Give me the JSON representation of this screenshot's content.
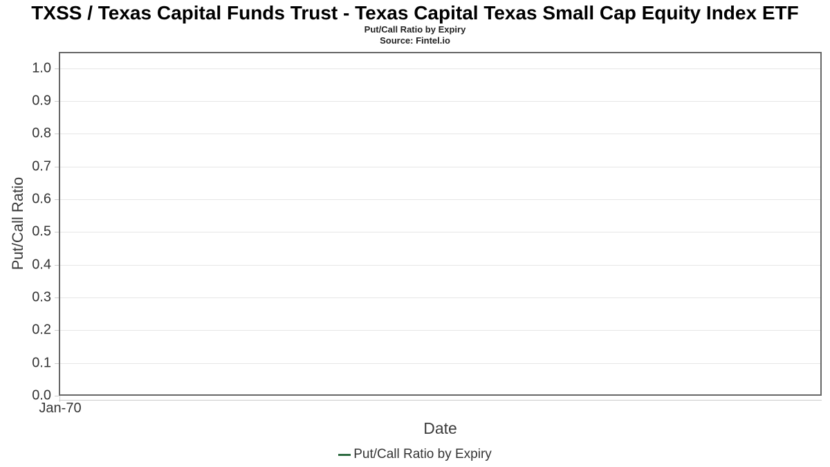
{
  "header": {
    "title": "TXSS / Texas Capital Funds Trust - Texas Capital Texas Small Cap Equity Index ETF",
    "subtitle": "Put/Call Ratio by Expiry",
    "source": "Source: Fintel.io"
  },
  "colors": {
    "series_line": "#2e6b41",
    "plot_border": "#666666",
    "gridline": "#e6e6e6",
    "axis_tick": "#cccccc",
    "tick_label_text": "#333333",
    "axis_title_text": "#3c3c3c",
    "title_text": "#000000"
  },
  "chart_data": {
    "type": "line",
    "title": "Put/Call Ratio by Expiry",
    "subtitle": "Source: Fintel.io",
    "xlabel": "Date",
    "ylabel": "Put/Call Ratio",
    "ylim": [
      0,
      1.05
    ],
    "y_ticks": [
      0.0,
      0.1,
      0.2,
      0.3,
      0.4,
      0.5,
      0.6,
      0.7,
      0.8,
      0.9,
      1.0
    ],
    "y_tick_labels": [
      "0.0",
      "0.1",
      "0.2",
      "0.3",
      "0.4",
      "0.5",
      "0.6",
      "0.7",
      "0.8",
      "0.9",
      "1.0"
    ],
    "x_tick_labels": [
      "Jan-70"
    ],
    "grid": "horizontal",
    "legend_position": "bottom-center",
    "series": [
      {
        "name": "Put/Call Ratio by Expiry",
        "color": "#2e6b41",
        "x": [],
        "values": []
      }
    ]
  }
}
